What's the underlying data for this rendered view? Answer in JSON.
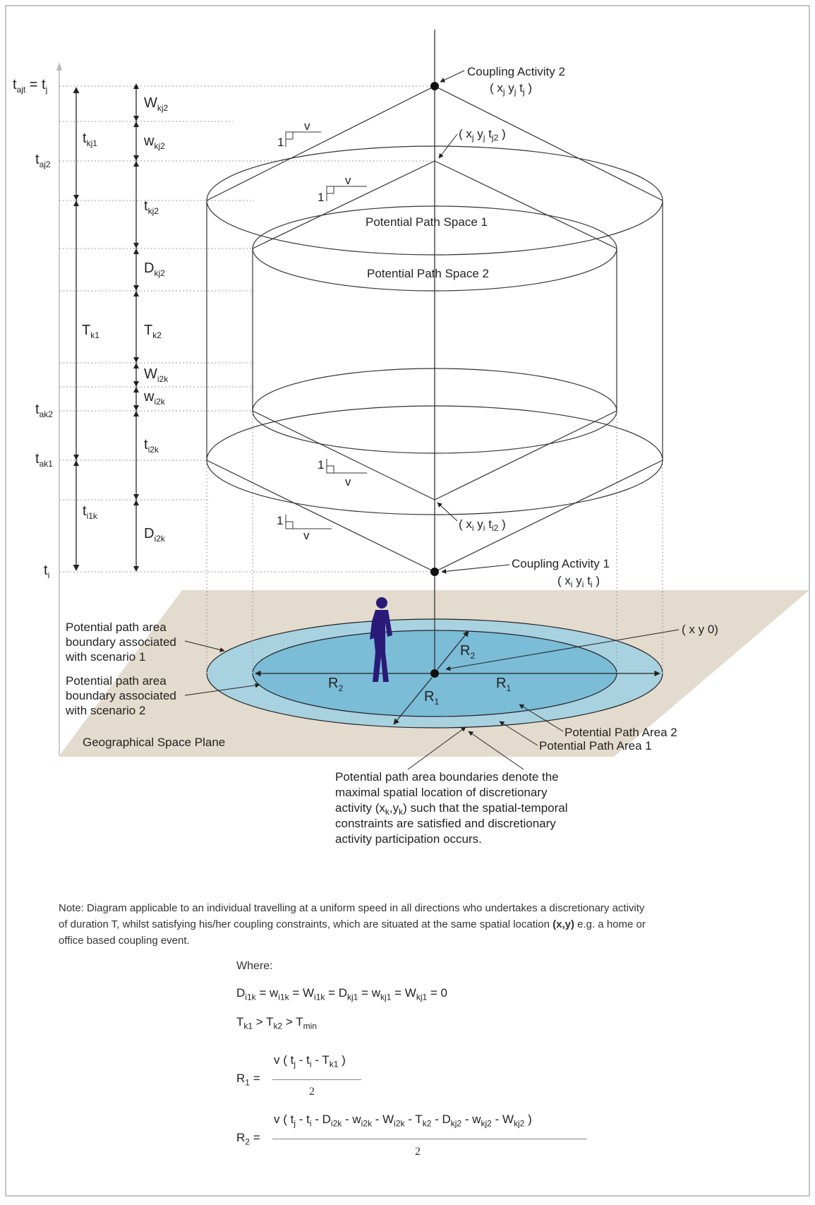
{
  "labels": {
    "tajt_eq_tj": "t",
    "coupling2": "Coupling Activity 2",
    "coupling2_coord": "( x",
    "pp_space1": "Potential Path Space 1",
    "pp_space2": "Potential Path Space 2",
    "coupling1": "Coupling Activity 1",
    "xy0": "( x y 0)",
    "scenario1": [
      "Potential path area",
      "boundary associated",
      "with scenario 1"
    ],
    "scenario2": [
      "Potential path area",
      "boundary associated",
      "with scenario 2"
    ],
    "geo_plane": "Geographical Space Plane",
    "ppa2": "Potential Path Area 2",
    "ppa1": "Potential Path Area 1",
    "caption": [
      "Potential path area boundaries denote the",
      "maximal spatial location of discretionary",
      "activity",
      "such that the spatial-temporal",
      "constraints are satisfied and discretionary",
      "activity participation occurs."
    ]
  },
  "note": {
    "line1": "Note: Diagram applicable to an individual travelling at a uniform speed in all directions who undertakes a discretionary activity",
    "line2a": "of duration T, whilst satisfying his/her coupling constraints, which are situated at the same spatial location",
    "line2b": "(x,y)",
    "line2c": "e.g. a home or",
    "line3": "office based coupling event."
  },
  "equations": {
    "where": "Where:",
    "r1_label": "R",
    "denominator": "2"
  },
  "colors": {
    "plane": "#e3dbcd",
    "area1": "#a9d2e1",
    "area2": "#7bbcd7",
    "line": "#333333",
    "person": "#2a1a78"
  }
}
